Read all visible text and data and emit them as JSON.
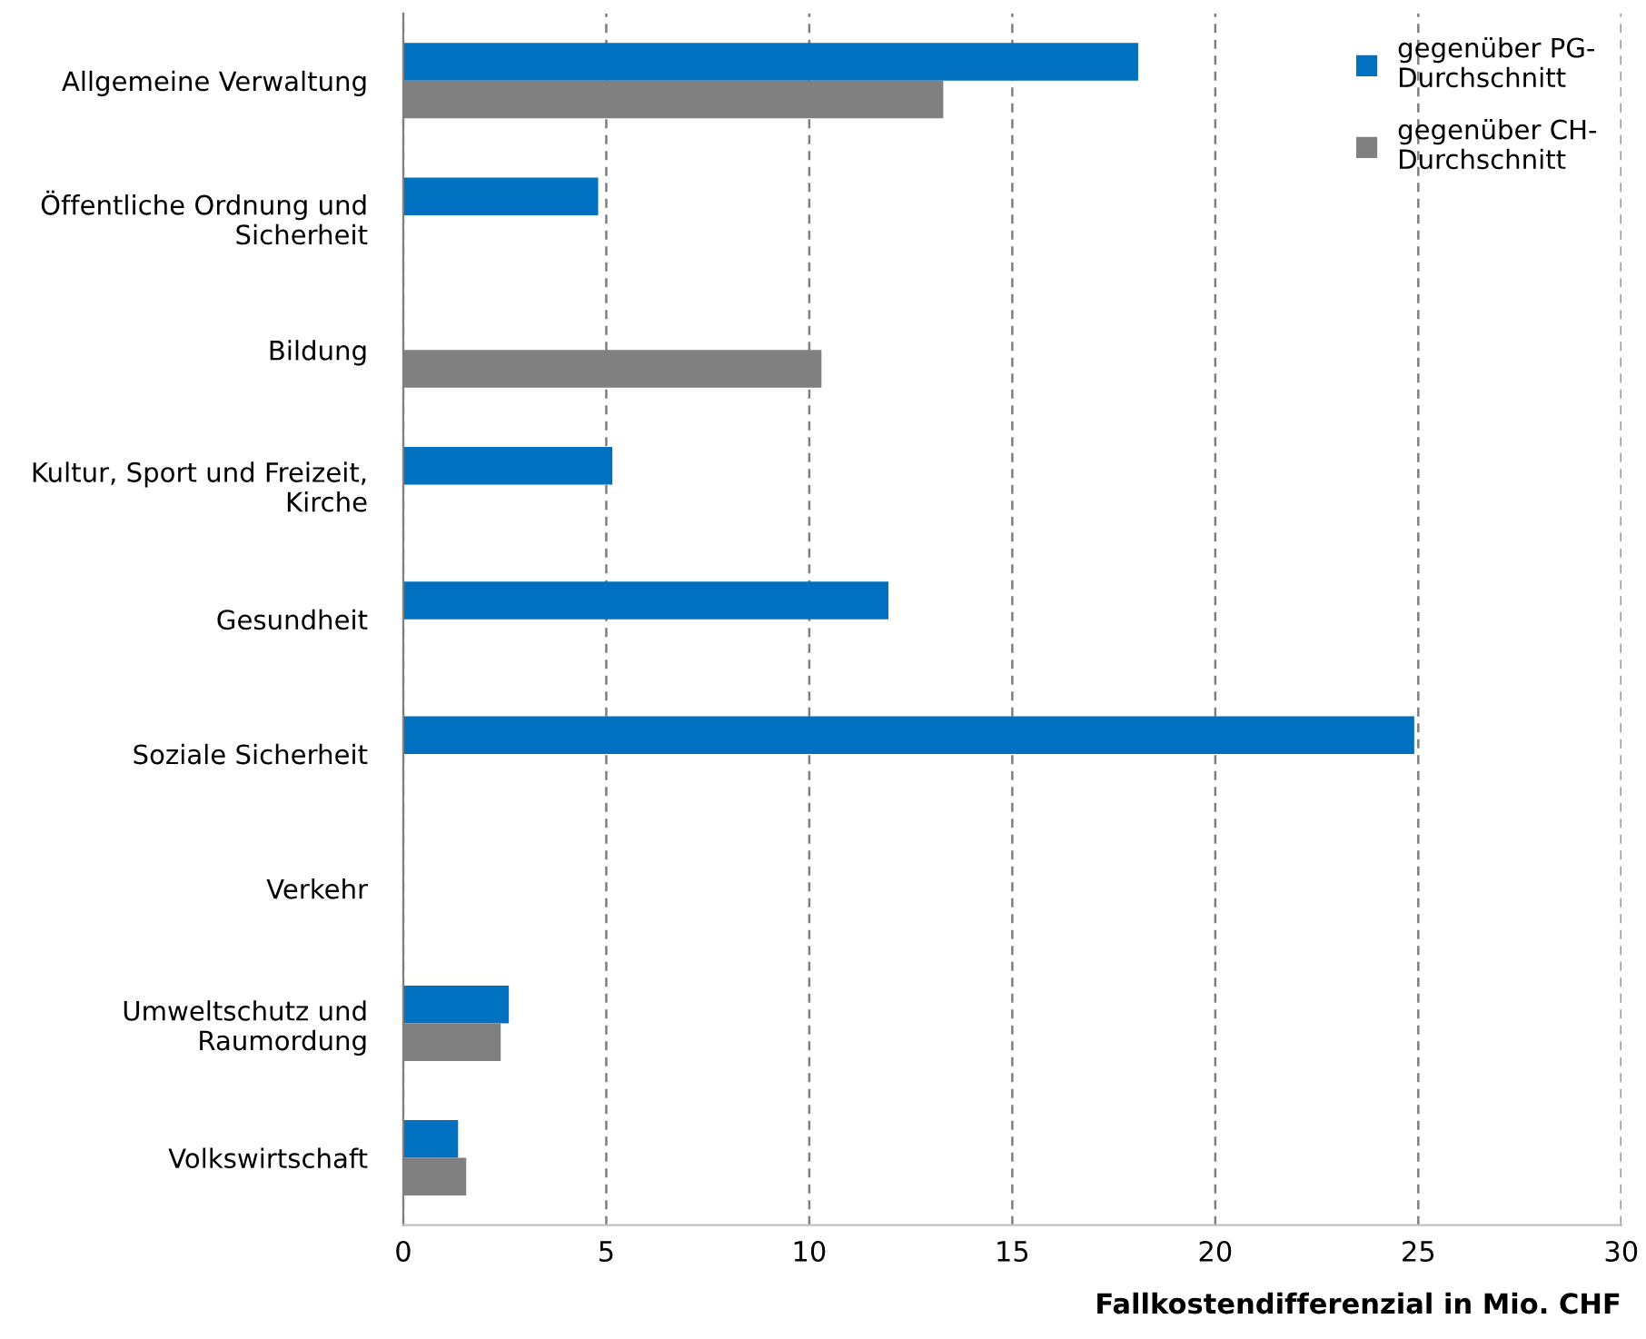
{
  "chart_data": {
    "type": "bar",
    "orientation": "horizontal",
    "xlabel": "Fallkostendifferenzial in Mio. CHF",
    "categories": [
      "Allgemeine Verwaltung",
      "Öffentliche Ordnung und\nSicherheit",
      "Bildung",
      "Kultur, Sport und Freizeit,\nKirche",
      "Gesundheit",
      "Soziale Sicherheit",
      "Verkehr",
      "Umweltschutz und\nRaumordung",
      "Volkswirtschaft"
    ],
    "series": [
      {
        "name": "gegenüber PG-\nDurchschnitt",
        "color": "#0070c0",
        "values": [
          18.1,
          4.8,
          null,
          5.15,
          11.95,
          24.9,
          null,
          2.6,
          1.35
        ]
      },
      {
        "name": "gegenüber CH-\nDurchschnitt",
        "color": "#808080",
        "values": [
          13.3,
          null,
          10.3,
          null,
          null,
          null,
          null,
          2.4,
          1.55
        ]
      }
    ],
    "xlim": [
      0,
      30
    ],
    "xticks": [
      0,
      5,
      10,
      15,
      20,
      25,
      30
    ],
    "grid": "x",
    "legend": "top right"
  }
}
